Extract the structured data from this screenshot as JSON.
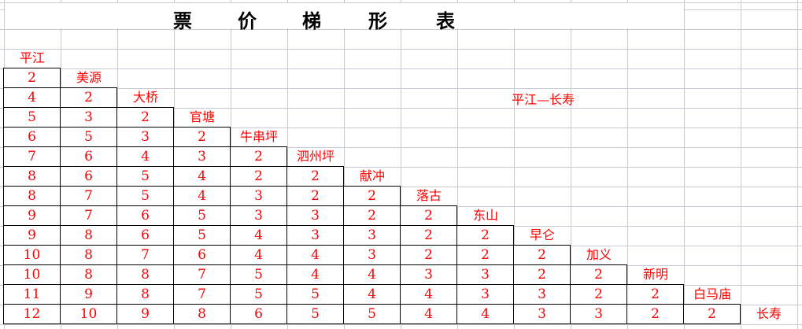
{
  "title_chars": [
    "票",
    "价",
    "梯",
    "形",
    "表"
  ],
  "route_label": "平江—长寿",
  "stations": [
    "平江",
    "美源",
    "大桥",
    "官塘",
    "牛串坪",
    "泗州坪",
    "献冲",
    "落古",
    "东山",
    "早仑",
    "加义",
    "新明",
    "白马庙",
    "长寿"
  ],
  "fares": [
    [
      2
    ],
    [
      4,
      2
    ],
    [
      5,
      3,
      2
    ],
    [
      6,
      5,
      3,
      2
    ],
    [
      7,
      6,
      4,
      3,
      2
    ],
    [
      8,
      6,
      5,
      4,
      2,
      2
    ],
    [
      8,
      7,
      5,
      4,
      3,
      2,
      2
    ],
    [
      9,
      7,
      6,
      5,
      3,
      3,
      2,
      2
    ],
    [
      9,
      8,
      6,
      5,
      4,
      3,
      3,
      2,
      2
    ],
    [
      10,
      8,
      7,
      6,
      4,
      4,
      3,
      2,
      2,
      2
    ],
    [
      10,
      8,
      8,
      7,
      5,
      4,
      4,
      3,
      3,
      2,
      2
    ],
    [
      11,
      9,
      8,
      7,
      5,
      5,
      4,
      4,
      3,
      3,
      2,
      2
    ],
    [
      12,
      10,
      9,
      8,
      6,
      5,
      5,
      4,
      4,
      3,
      3,
      2,
      2
    ]
  ],
  "colors": {
    "text": "#ff0000",
    "grid": "#c6cbd6",
    "title": "#000000"
  }
}
